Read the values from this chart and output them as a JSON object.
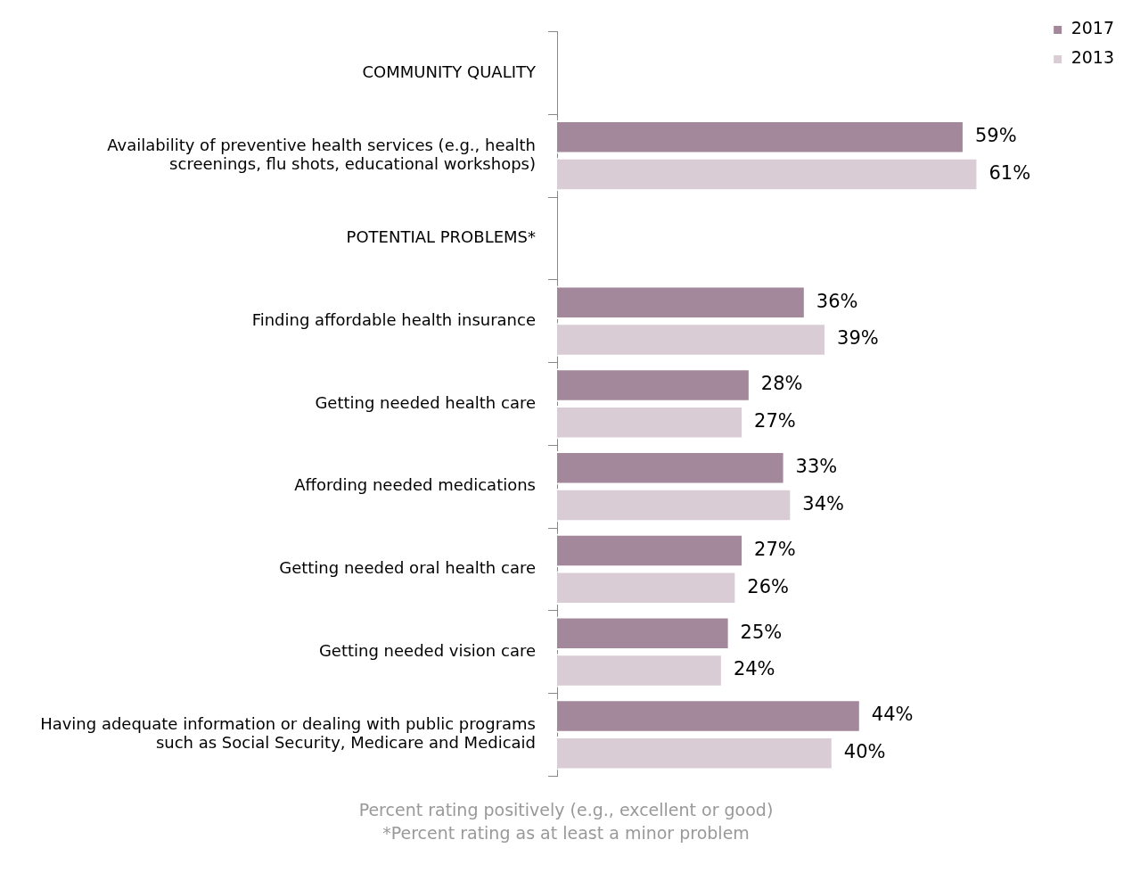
{
  "chart_data": {
    "type": "bar",
    "orientation": "horizontal",
    "categories": [
      "COMMUNITY QUALITY",
      "Availability of preventive health services (e.g., health screenings, flu shots, educational workshops)",
      "POTENTIAL PROBLEMS*",
      "Finding affordable health insurance",
      "Getting needed health care",
      "Affording needed medications",
      "Getting needed oral health care",
      "Getting needed vision care",
      "Having adequate information or dealing with public programs such as Social Security, Medicare and Medicaid"
    ],
    "series": [
      {
        "name": "2017",
        "color": "#a3879a",
        "values": [
          null,
          59,
          null,
          36,
          28,
          33,
          27,
          25,
          44
        ],
        "value_labels": [
          null,
          "59%",
          null,
          "36%",
          "28%",
          "33%",
          "27%",
          "25%",
          "44%"
        ]
      },
      {
        "name": "2013",
        "color": "#d9ccd5",
        "values": [
          null,
          61,
          null,
          39,
          27,
          34,
          26,
          24,
          40
        ],
        "value_labels": [
          null,
          "61%",
          null,
          "39%",
          "27%",
          "34%",
          "26%",
          "24%",
          "40%"
        ]
      }
    ],
    "legend": "top right",
    "tick_labels": "y",
    "annotations": [
      "Percent rating positively (e.g., excellent or good)",
      "*Percent rating as at least a minor problem"
    ]
  }
}
